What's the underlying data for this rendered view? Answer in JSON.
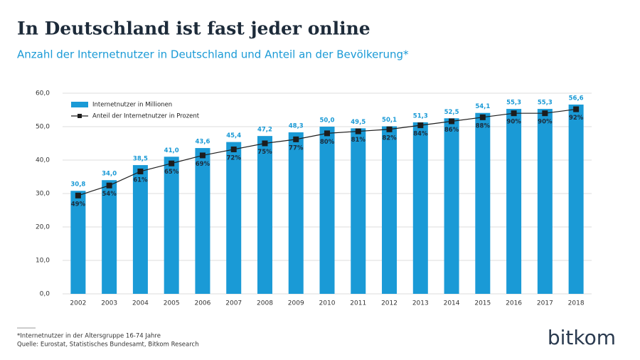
{
  "chart_data": {
    "type": "bar-line",
    "title": "In Deutschland ist fast jeder online",
    "subtitle": "Anzahl der Internetnutzer in Deutschland und Anteil an der Bevölkerung*",
    "categories": [
      "2002",
      "2003",
      "2004",
      "2005",
      "2006",
      "2007",
      "2008",
      "2009",
      "2010",
      "2011",
      "2012",
      "2013",
      "2014",
      "2015",
      "2016",
      "2017",
      "2018"
    ],
    "series": [
      {
        "name": "Internetnutzer in Millionen",
        "type": "bar",
        "color": "#1a9ad6",
        "values": [
          30.8,
          34.0,
          38.5,
          41.0,
          43.6,
          45.4,
          47.2,
          48.3,
          50.0,
          49.5,
          50.1,
          51.3,
          52.5,
          54.1,
          55.3,
          55.3,
          56.6
        ],
        "value_labels": [
          "30,8",
          "34,0",
          "38,5",
          "41,0",
          "43,6",
          "45,4",
          "47,2",
          "48,3",
          "50,0",
          "49,5",
          "50,1",
          "51,3",
          "52,5",
          "54,1",
          "55,3",
          "55,3",
          "56,6"
        ]
      },
      {
        "name": "Anteil der Internetnutzer in Prozent",
        "type": "line",
        "color": "#1d1d1d",
        "axis": "y2",
        "values": [
          49,
          54,
          61,
          65,
          69,
          72,
          75,
          77,
          80,
          81,
          82,
          84,
          86,
          88,
          90,
          90,
          92
        ],
        "value_labels": [
          "49%",
          "54%",
          "61%",
          "65%",
          "69%",
          "72%",
          "75%",
          "77%",
          "80%",
          "81%",
          "82%",
          "84%",
          "86%",
          "88%",
          "90%",
          "90%",
          "92%"
        ]
      }
    ],
    "ylim": [
      0,
      60
    ],
    "yticks": [
      {
        "value": 0,
        "label": "0,0"
      },
      {
        "value": 10,
        "label": "10,0"
      },
      {
        "value": 20,
        "label": "20,0"
      },
      {
        "value": 30,
        "label": "30,0"
      },
      {
        "value": 40,
        "label": "40,0"
      },
      {
        "value": 50,
        "label": "50,0"
      },
      {
        "value": 60,
        "label": "60,0"
      }
    ],
    "y2lim": [
      0,
      100
    ],
    "grid": true,
    "legend": "top-left",
    "footnote": "*Internetnutzer in der Altersgruppe 16-74 Jahre",
    "source": "Quelle: Eurostat, Statistisches Bundesamt, Bitkom Research",
    "logo": "bitkom"
  }
}
